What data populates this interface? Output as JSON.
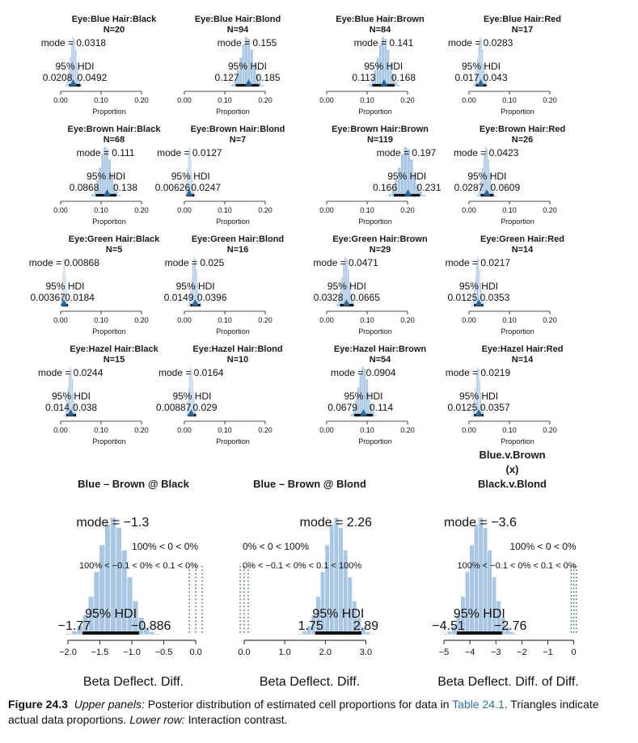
{
  "colors": {
    "bar": "#a9c6e2",
    "bar_stroke": "#ffffff",
    "triangle": "#2a6797",
    "hdi": "#111111",
    "annot_blue": "#2f6fa8",
    "axis": "#111111"
  },
  "chart_data": [
    {
      "type": "histogram",
      "title": "Eye:Blue  Hair:Black",
      "subtitle": "N=20",
      "mode_label": "mode = 0.0318",
      "hdi_label": "95% HDI",
      "hdi_low_label": "0.0208",
      "hdi_high_label": "0.0492",
      "mode": 0.0318,
      "hdi": [
        0.0208,
        0.0492
      ],
      "data_proportion": 0.031,
      "xlabel": "Proportion",
      "xticks": [
        0,
        0.1,
        0.2
      ],
      "xtick_labels": [
        "0.00",
        "0.10",
        "0.20"
      ]
    },
    {
      "type": "histogram",
      "title": "Eye:Blue  Hair:Blond",
      "subtitle": "N=94",
      "mode_label": "mode = 0.155",
      "hdi_label": "95% HDI",
      "hdi_low_label": "0.127",
      "hdi_high_label": "0.185",
      "mode": 0.155,
      "hdi": [
        0.127,
        0.185
      ],
      "data_proportion": 0.159,
      "xlabel": "Proportion",
      "xticks": [
        0,
        0.1,
        0.2
      ],
      "xtick_labels": [
        "0.00",
        "0.10",
        "0.20"
      ]
    },
    {
      "type": "histogram",
      "title": "Eye:Blue  Hair:Brown",
      "subtitle": "N=84",
      "mode_label": "mode = 0.141",
      "hdi_label": "95% HDI",
      "hdi_low_label": "0.113",
      "hdi_high_label": "0.168",
      "mode": 0.141,
      "hdi": [
        0.113,
        0.168
      ],
      "data_proportion": 0.142,
      "xlabel": "Proportion",
      "xticks": [
        0,
        0.1,
        0.2
      ],
      "xtick_labels": [
        "0.00",
        "0.10",
        "0.20"
      ]
    },
    {
      "type": "histogram",
      "title": "Eye:Blue  Hair:Red",
      "subtitle": "N=17",
      "mode_label": "mode = 0.0283",
      "hdi_label": "95% HDI",
      "hdi_low_label": "0.017",
      "hdi_high_label": "0.043",
      "mode": 0.0283,
      "hdi": [
        0.017,
        0.043
      ],
      "data_proportion": 0.029,
      "xlabel": "Proportion",
      "xticks": [
        0,
        0.1,
        0.2
      ],
      "xtick_labels": [
        "0.00",
        "0.10",
        "0.20"
      ]
    },
    {
      "type": "histogram",
      "title": "Eye:Brown  Hair:Black",
      "subtitle": "N=68",
      "mode_label": "mode = 0.111",
      "hdi_label": "95% HDI",
      "hdi_low_label": "0.0868",
      "hdi_high_label": "0.138",
      "mode": 0.111,
      "hdi": [
        0.0868,
        0.138
      ],
      "data_proportion": 0.115,
      "xlabel": "Proportion",
      "xticks": [
        0,
        0.1,
        0.2
      ],
      "xtick_labels": [
        "0.00",
        "0.10",
        "0.20"
      ]
    },
    {
      "type": "histogram",
      "title": "Eye:Brown  Hair:Blond",
      "subtitle": "N=7",
      "mode_label": "mode = 0.0127",
      "hdi_label": "95% HDI",
      "hdi_low_label": "0.00626",
      "hdi_high_label": "0.0247",
      "mode": 0.0127,
      "hdi": [
        0.00626,
        0.0247
      ],
      "data_proportion": 0.012,
      "xlabel": "Proportion",
      "xticks": [
        0,
        0.1,
        0.2
      ],
      "xtick_labels": [
        "0.00",
        "0.10",
        "0.20"
      ]
    },
    {
      "type": "histogram",
      "title": "Eye:Brown  Hair:Brown",
      "subtitle": "N=119",
      "mode_label": "mode = 0.197",
      "hdi_label": "95% HDI",
      "hdi_low_label": "0.166",
      "hdi_high_label": "0.231",
      "mode": 0.197,
      "hdi": [
        0.166,
        0.231
      ],
      "data_proportion": 0.201,
      "xlabel": "Proportion",
      "xticks": [
        0,
        0.1,
        0.2
      ],
      "xtick_labels": [
        "0.00",
        "0.10",
        "0.20"
      ]
    },
    {
      "type": "histogram",
      "title": "Eye:Brown  Hair:Red",
      "subtitle": "N=26",
      "mode_label": "mode = 0.0423",
      "hdi_label": "95% HDI",
      "hdi_low_label": "0.0287",
      "hdi_high_label": "0.0609",
      "mode": 0.0423,
      "hdi": [
        0.0287,
        0.0609
      ],
      "data_proportion": 0.044,
      "xlabel": "Proportion",
      "xticks": [
        0,
        0.1,
        0.2
      ],
      "xtick_labels": [
        "0.00",
        "0.10",
        "0.20"
      ]
    },
    {
      "type": "histogram",
      "title": "Eye:Green  Hair:Black",
      "subtitle": "N=5",
      "mode_label": "mode = 0.00868",
      "hdi_label": "95% HDI",
      "hdi_low_label": "0.00367",
      "hdi_high_label": "0.0184",
      "mode": 0.00868,
      "hdi": [
        0.00367,
        0.0184
      ],
      "data_proportion": 0.008,
      "xlabel": "Proportion",
      "xticks": [
        0,
        0.1,
        0.2
      ],
      "xtick_labels": [
        "0.00",
        "0.10",
        "0.20"
      ]
    },
    {
      "type": "histogram",
      "title": "Eye:Green  Hair:Blond",
      "subtitle": "N=16",
      "mode_label": "mode = 0.025",
      "hdi_label": "95% HDI",
      "hdi_low_label": "0.0149",
      "hdi_high_label": "0.0396",
      "mode": 0.025,
      "hdi": [
        0.0149,
        0.0396
      ],
      "data_proportion": 0.027,
      "xlabel": "Proportion",
      "xticks": [
        0,
        0.1,
        0.2
      ],
      "xtick_labels": [
        "0.00",
        "0.10",
        "0.20"
      ]
    },
    {
      "type": "histogram",
      "title": "Eye:Green  Hair:Brown",
      "subtitle": "N=29",
      "mode_label": "mode = 0.0471",
      "hdi_label": "95% HDI",
      "hdi_low_label": "0.0328",
      "hdi_high_label": "0.0665",
      "mode": 0.0471,
      "hdi": [
        0.0328,
        0.0665
      ],
      "data_proportion": 0.049,
      "xlabel": "Proportion",
      "xticks": [
        0,
        0.1,
        0.2
      ],
      "xtick_labels": [
        "0.00",
        "0.10",
        "0.20"
      ]
    },
    {
      "type": "histogram",
      "title": "Eye:Green  Hair:Red",
      "subtitle": "N=14",
      "mode_label": "mode = 0.0217",
      "hdi_label": "95% HDI",
      "hdi_low_label": "0.0125",
      "hdi_high_label": "0.0353",
      "mode": 0.0217,
      "hdi": [
        0.0125,
        0.0353
      ],
      "data_proportion": 0.024,
      "xlabel": "Proportion",
      "xticks": [
        0,
        0.1,
        0.2
      ],
      "xtick_labels": [
        "0.00",
        "0.10",
        "0.20"
      ]
    },
    {
      "type": "histogram",
      "title": "Eye:Hazel  Hair:Black",
      "subtitle": "N=15",
      "mode_label": "mode = 0.0244",
      "hdi_label": "95% HDI",
      "hdi_low_label": "0.014",
      "hdi_high_label": "0.038",
      "mode": 0.0244,
      "hdi": [
        0.014,
        0.038
      ],
      "data_proportion": 0.025,
      "xlabel": "Proportion",
      "xticks": [
        0,
        0.1,
        0.2
      ],
      "xtick_labels": [
        "0.00",
        "0.10",
        "0.20"
      ]
    },
    {
      "type": "histogram",
      "title": "Eye:Hazel  Hair:Blond",
      "subtitle": "N=10",
      "mode_label": "mode = 0.0164",
      "hdi_label": "95% HDI",
      "hdi_low_label": "0.00887",
      "hdi_high_label": "0.029",
      "mode": 0.0164,
      "hdi": [
        0.00887,
        0.029
      ],
      "data_proportion": 0.017,
      "xlabel": "Proportion",
      "xticks": [
        0,
        0.1,
        0.2
      ],
      "xtick_labels": [
        "0.00",
        "0.10",
        "0.20"
      ]
    },
    {
      "type": "histogram",
      "title": "Eye:Hazel  Hair:Brown",
      "subtitle": "N=54",
      "mode_label": "mode = 0.0904",
      "hdi_label": "95% HDI",
      "hdi_low_label": "0.0679",
      "hdi_high_label": "0.114",
      "mode": 0.0904,
      "hdi": [
        0.0679,
        0.114
      ],
      "data_proportion": 0.091,
      "xlabel": "Proportion",
      "xticks": [
        0,
        0.1,
        0.2
      ],
      "xtick_labels": [
        "0.00",
        "0.10",
        "0.20"
      ]
    },
    {
      "type": "histogram",
      "title": "Eye:Hazel  Hair:Red",
      "subtitle": "N=14",
      "mode_label": "mode = 0.0219",
      "hdi_label": "95% HDI",
      "hdi_low_label": "0.0125",
      "hdi_high_label": "0.0357",
      "mode": 0.0219,
      "hdi": [
        0.0125,
        0.0357
      ],
      "data_proportion": 0.024,
      "xlabel": "Proportion",
      "xticks": [
        0,
        0.1,
        0.2
      ],
      "xtick_labels": [
        "0.00",
        "0.10",
        "0.20"
      ]
    }
  ],
  "contrast_data": [
    {
      "type": "histogram",
      "title_lines": [
        "Blue – Brown @ Black"
      ],
      "mode_label": "mode = −1.3",
      "hdi_label": "95% HDI",
      "hdi_low_label": "−1.77",
      "hdi_high_label": "−0.886",
      "pct_label": "100% < 0 < 0%",
      "rope_label": "100% < −0.1 < 0% < 0.1 < 0%",
      "mode": -1.3,
      "hdi": [
        -1.77,
        -0.886
      ],
      "rope": [
        -0.1,
        0.1
      ],
      "xlabel": "Beta Deflect. Diff.",
      "xticks": [
        -2,
        -1.5,
        -1,
        -0.5,
        0
      ],
      "xtick_labels": [
        "−2.0",
        "−1.5",
        "−1.0",
        "−0.5",
        "0.0"
      ],
      "xlim": [
        -2.05,
        0.1
      ]
    },
    {
      "type": "histogram",
      "title_lines": [
        "Blue – Brown @ Blond"
      ],
      "mode_label": "mode = 2.26",
      "hdi_label": "95% HDI",
      "hdi_low_label": "1.75",
      "hdi_high_label": "2.89",
      "pct_label": "0% < 0 < 100%",
      "rope_label": "0% < −0.1 < 0% < 0.1 < 100%",
      "mode": 2.26,
      "hdi": [
        1.75,
        2.89
      ],
      "rope": [
        -0.1,
        0.1
      ],
      "xlabel": "Beta Deflect. Diff.",
      "xticks": [
        0,
        1,
        2,
        3
      ],
      "xtick_labels": [
        "0.0",
        "1.0",
        "2.0",
        "3.0"
      ],
      "xlim": [
        -0.12,
        3.35
      ]
    },
    {
      "type": "histogram",
      "title_lines": [
        "Blue.v.Brown",
        "(x)",
        "Black.v.Blond"
      ],
      "mode_label": "mode = −3.6",
      "hdi_label": "95% HDI",
      "hdi_low_label": "−4.51",
      "hdi_high_label": "−2.76",
      "pct_label": "100% < 0 < 0%",
      "rope_label": "100% < −0.1 < 0% < 0.1 < 0%",
      "mode": -3.6,
      "hdi": [
        -4.51,
        -2.76
      ],
      "rope": [
        -0.1,
        0.1
      ],
      "xlabel": "Beta Deflect. Diff. of Diff.",
      "xticks": [
        -5,
        -4,
        -3,
        -2,
        -1,
        0
      ],
      "xtick_labels": [
        "−5",
        "−4",
        "−3",
        "−2",
        "−1",
        "0"
      ],
      "xlim": [
        -5.25,
        0.2
      ]
    }
  ],
  "caption": {
    "figure": "Figure 24.3",
    "upper_label": "Upper panels:",
    "upper_text": " Posterior distribution of estimated cell proportions for data in ",
    "table_ref": "Table 24.1",
    "after_ref": ". Triangles indicate actual data proportions. ",
    "lower_label": "Lower row:",
    "lower_text": " Interaction contrast."
  }
}
